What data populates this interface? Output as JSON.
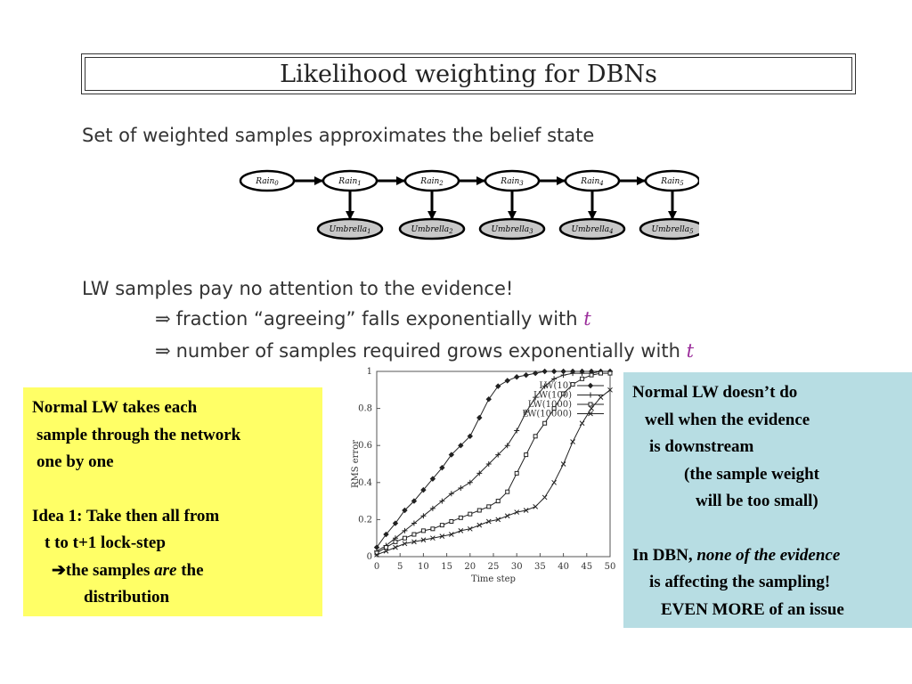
{
  "slide": {
    "title": "Likelihood weighting for DBNs",
    "lines": {
      "l1": "Set of weighted samples approximates the belief state",
      "l2": "LW samples pay no attention to the evidence!",
      "l3_arrow": "⇒",
      "l3": "fraction “agreeing” falls exponentially with",
      "l3_var": "t",
      "l4_arrow": "⇒",
      "l4": "number of samples required grows exponentially with",
      "l4_var": "t"
    }
  },
  "network": {
    "rain_nodes": [
      {
        "label": "Rain",
        "sub": "0"
      },
      {
        "label": "Rain",
        "sub": "1"
      },
      {
        "label": "Rain",
        "sub": "2"
      },
      {
        "label": "Rain",
        "sub": "3"
      },
      {
        "label": "Rain",
        "sub": "4"
      },
      {
        "label": "Rain",
        "sub": "5"
      }
    ],
    "umbrella_nodes": [
      {
        "label": "Umbrella",
        "sub": "1"
      },
      {
        "label": "Umbrella",
        "sub": "2"
      },
      {
        "label": "Umbrella",
        "sub": "3"
      },
      {
        "label": "Umbrella",
        "sub": "4"
      },
      {
        "label": "Umbrella",
        "sub": "5"
      }
    ],
    "colors": {
      "rain_fill": "#ffffff",
      "umbrella_fill": "#c8c8c8",
      "stroke": "#000000"
    }
  },
  "chart_data": {
    "type": "line",
    "xlabel": "Time step",
    "ylabel": "RMS error",
    "xlim": [
      0,
      50
    ],
    "ylim": [
      0,
      1
    ],
    "xticks": [
      0,
      5,
      10,
      15,
      20,
      25,
      30,
      35,
      40,
      45,
      50
    ],
    "yticks": [
      0,
      0.2,
      0.4,
      0.6,
      0.8,
      1
    ],
    "ytick_labels": [
      "0",
      "0.2",
      "0.4",
      "0.6",
      "0.8",
      "1"
    ],
    "legend_position": "top-right",
    "series": [
      {
        "name": "LW(10)",
        "marker": "diamond",
        "x": [
          0,
          2,
          4,
          6,
          8,
          10,
          12,
          14,
          16,
          18,
          20,
          22,
          24,
          26,
          28,
          30,
          32,
          34,
          36,
          38,
          40,
          42,
          44,
          46,
          48,
          50
        ],
        "values": [
          0.05,
          0.12,
          0.18,
          0.25,
          0.3,
          0.36,
          0.42,
          0.48,
          0.55,
          0.6,
          0.65,
          0.75,
          0.85,
          0.92,
          0.95,
          0.97,
          0.98,
          0.99,
          1,
          1,
          1,
          1,
          1,
          1,
          1,
          1
        ]
      },
      {
        "name": "LW(100)",
        "marker": "plus",
        "x": [
          0,
          2,
          4,
          6,
          8,
          10,
          12,
          14,
          16,
          18,
          20,
          22,
          24,
          26,
          28,
          30,
          32,
          34,
          36,
          38,
          40,
          42,
          44,
          46,
          48,
          50
        ],
        "values": [
          0.03,
          0.06,
          0.1,
          0.14,
          0.18,
          0.22,
          0.26,
          0.3,
          0.34,
          0.37,
          0.4,
          0.45,
          0.5,
          0.55,
          0.6,
          0.68,
          0.78,
          0.86,
          0.92,
          0.96,
          0.98,
          0.99,
          0.99,
          0.99,
          1,
          1
        ]
      },
      {
        "name": "LW(1000)",
        "marker": "square",
        "x": [
          0,
          2,
          4,
          6,
          8,
          10,
          12,
          14,
          16,
          18,
          20,
          22,
          24,
          26,
          28,
          30,
          32,
          34,
          36,
          38,
          40,
          42,
          44,
          46,
          48,
          50
        ],
        "values": [
          0.02,
          0.05,
          0.08,
          0.1,
          0.12,
          0.14,
          0.15,
          0.17,
          0.19,
          0.21,
          0.23,
          0.25,
          0.27,
          0.3,
          0.35,
          0.45,
          0.55,
          0.65,
          0.72,
          0.8,
          0.88,
          0.93,
          0.96,
          0.98,
          0.99,
          0.99
        ]
      },
      {
        "name": "LW(10000)",
        "marker": "cross",
        "x": [
          0,
          2,
          4,
          6,
          8,
          10,
          12,
          14,
          16,
          18,
          20,
          22,
          24,
          26,
          28,
          30,
          32,
          34,
          36,
          38,
          40,
          42,
          44,
          46,
          48,
          50
        ],
        "values": [
          0.01,
          0.03,
          0.05,
          0.07,
          0.08,
          0.09,
          0.1,
          0.11,
          0.12,
          0.14,
          0.15,
          0.17,
          0.19,
          0.2,
          0.22,
          0.24,
          0.25,
          0.27,
          0.32,
          0.4,
          0.5,
          0.62,
          0.72,
          0.8,
          0.86,
          0.9
        ]
      }
    ]
  },
  "notes": {
    "left": {
      "line1": "Normal LW takes each",
      "line2": "sample through the network",
      "line3": "one by one",
      "line4": "Idea 1: Take then all from",
      "line5": "t to t+1 lock-step",
      "line6_arrow": "➔",
      "line6_a": "the samples ",
      "line6_em": "are",
      "line6_b": " the",
      "line7": "distribution"
    },
    "right": {
      "line1": "Normal LW doesn’t do",
      "line2": "well when the evidence",
      "line3": "is downstream",
      "line4": "(the sample weight",
      "line5": "will be too small)",
      "line6_a": "In DBN, ",
      "line6_em": "none of the evidence",
      "line7": "is affecting the sampling!",
      "line8": "EVEN MORE of an issue"
    },
    "colors": {
      "left_bg": "#ffff66",
      "right_bg": "#b7dde3"
    }
  }
}
